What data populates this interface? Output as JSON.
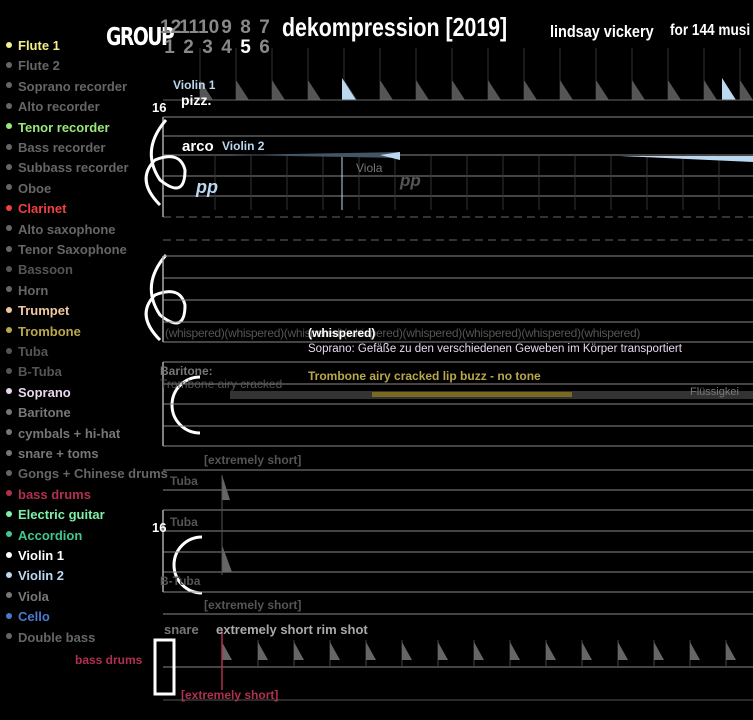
{
  "header": {
    "group_label": "GROUP",
    "group_numbers_top": [
      "12",
      "11",
      "10",
      "9",
      "8",
      "7"
    ],
    "group_numbers_bottom": [
      "1",
      "2",
      "3",
      "4",
      "5",
      "6"
    ],
    "active_group": "5",
    "title": "dekompression [2019]",
    "composer": "lindsay vickery",
    "ensemble": "for 144 musi"
  },
  "instruments": [
    {
      "name": "Flute 1",
      "color": "#f5f08a"
    },
    {
      "name": "Flute 2",
      "color": "#666666"
    },
    {
      "name": "Soprano recorder",
      "color": "#666666"
    },
    {
      "name": "Alto recorder",
      "color": "#666666"
    },
    {
      "name": "Tenor recorder",
      "color": "#9be87a"
    },
    {
      "name": "Bass recorder",
      "color": "#666666"
    },
    {
      "name": "Subbass recorder",
      "color": "#666666"
    },
    {
      "name": "Oboe",
      "color": "#666666"
    },
    {
      "name": "Clarinet",
      "color": "#f04040"
    },
    {
      "name": "Alto saxophone",
      "color": "#666666"
    },
    {
      "name": "Tenor Saxophone",
      "color": "#666666"
    },
    {
      "name": "Bassoon",
      "color": "#555555"
    },
    {
      "name": "Horn",
      "color": "#666666"
    },
    {
      "name": "Trumpet",
      "color": "#f0c8a0"
    },
    {
      "name": "Trombone",
      "color": "#b9a84a"
    },
    {
      "name": "Tuba",
      "color": "#555555"
    },
    {
      "name": "B-Tuba",
      "color": "#555555"
    },
    {
      "name": "Soprano",
      "color": "#e8d8f0"
    },
    {
      "name": "Baritone",
      "color": "#777777"
    },
    {
      "name": "cymbals + hi-hat",
      "color": "#777777"
    },
    {
      "name": "snare + toms",
      "color": "#777777"
    },
    {
      "name": "Gongs + Chinese drums",
      "color": "#666666"
    },
    {
      "name": "bass drums",
      "color": "#b03050"
    },
    {
      "name": "Electric guitar",
      "color": "#7ef0a8"
    },
    {
      "name": "Accordion",
      "color": "#40c890"
    },
    {
      "name": "Violin 1",
      "color": "#ffffff"
    },
    {
      "name": "Violin 2",
      "color": "#bcd8f0"
    },
    {
      "name": "Viola",
      "color": "#777777"
    },
    {
      "name": "Cello",
      "color": "#4a7ad0"
    },
    {
      "name": "Double bass",
      "color": "#666666"
    }
  ],
  "score": {
    "system1": {
      "measure_number": "16",
      "violin1_label": "Violin 1",
      "pizz": "pizz.",
      "arco": "arco",
      "violin2_label": "Violin 2",
      "dynamic1": "pp",
      "viola_label": "Viola",
      "dynamic2": "pp"
    },
    "system2": {
      "whispered": "(whispered)",
      "soprano_text": "Soprano: Gefäße zu den verschiedenen Geweben im Körper transportiert",
      "trombone_text": "Trombone  airy cracked lip buzz - no tone",
      "baritone_text": "Baritone:",
      "trombone_ghost": "Trombone  airy cracked",
      "fluss": "Flüssigkei"
    },
    "system3": {
      "extremely_short": "[extremely short]",
      "tuba": "Tuba",
      "measure_number": "16",
      "btuba": "B-Tuba",
      "extremely_short2": "[extremely short]"
    },
    "system4": {
      "snare": "snare",
      "rim_shot": "extremely short rim shot",
      "bass_drums": "bass drums",
      "extremely_short": "[extremely short]"
    }
  }
}
